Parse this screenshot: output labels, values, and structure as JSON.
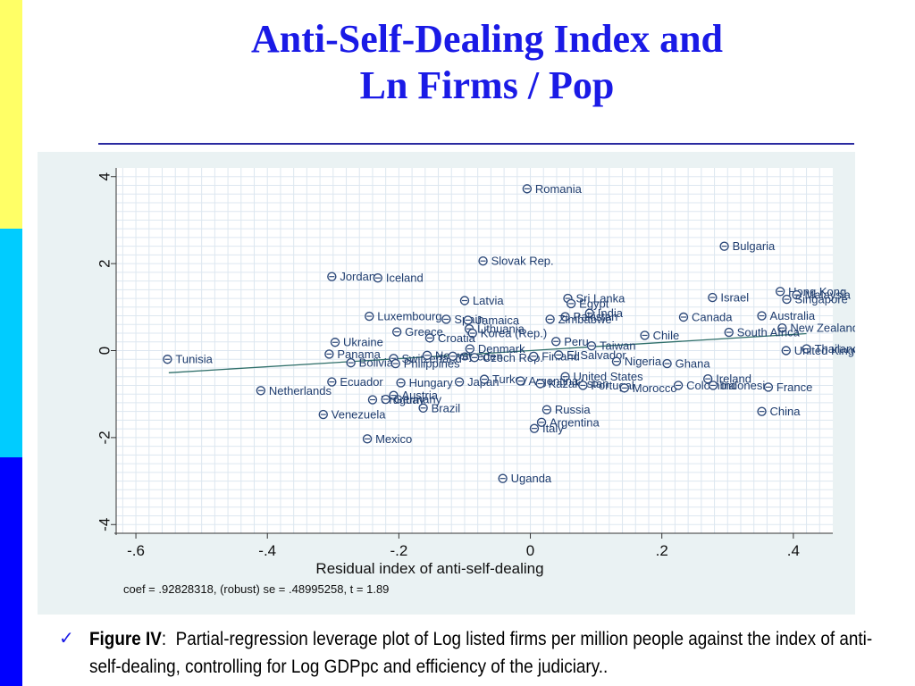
{
  "slide": {
    "title_line1": "Anti-Self-Dealing Index and",
    "title_line2": "Ln Firms / Pop",
    "accent_colors": [
      "#ffff66",
      "#00ccff",
      "#0000ff"
    ],
    "title_color": "#1a1ae6"
  },
  "caption": {
    "bullet_icon": "checkmark-icon",
    "label": "Figure IV",
    "separator": ":",
    "text": "Partial-regression leverage plot of Log listed firms per million people against the index of anti-self-dealing, controlling for Log GDPpc and efficiency of the judiciary.."
  },
  "chart_data": {
    "type": "scatter",
    "xlabel": "Residual index of anti-self-dealing",
    "ylabel": "",
    "footnote": "coef = .92828318, (robust) se = .48995258, t = 1.89",
    "xlim": [
      -0.63,
      0.46
    ],
    "ylim": [
      -4.2,
      4.2
    ],
    "xticks": [
      -0.6,
      -0.4,
      -0.2,
      0,
      0.2,
      0.4
    ],
    "xtick_labels": [
      "-.6",
      "-.4",
      "-.2",
      "0",
      ".2",
      ".4"
    ],
    "yticks": [
      -4,
      -2,
      0,
      2,
      4
    ],
    "ytick_labels": [
      "-4",
      "-2",
      "0",
      "2",
      "4"
    ],
    "grid": true,
    "fit_line": {
      "x": [
        -0.55,
        0.42
      ],
      "y": [
        -0.51,
        0.39
      ]
    },
    "colors": {
      "marker": "#2e4a7a",
      "line": "#2f6f6a",
      "label": "#1e3c6e"
    },
    "points": [
      {
        "label": "Romania",
        "x": -0.005,
        "y": 3.72
      },
      {
        "label": "Bulgaria",
        "x": 0.295,
        "y": 2.4
      },
      {
        "label": "Slovak Rep.",
        "x": -0.072,
        "y": 2.06
      },
      {
        "label": "Jordan",
        "x": -0.302,
        "y": 1.7
      },
      {
        "label": "Iceland",
        "x": -0.232,
        "y": 1.67
      },
      {
        "label": "Latvia",
        "x": -0.1,
        "y": 1.15
      },
      {
        "label": "Sri Lanka",
        "x": 0.057,
        "y": 1.2
      },
      {
        "label": "Egypt",
        "x": 0.062,
        "y": 1.08
      },
      {
        "label": "Israel",
        "x": 0.277,
        "y": 1.22
      },
      {
        "label": "Hong Kong",
        "x": 0.38,
        "y": 1.36
      },
      {
        "label": "Malaysia",
        "x": 0.405,
        "y": 1.28
      },
      {
        "label": "Singapore",
        "x": 0.39,
        "y": 1.18
      },
      {
        "label": "Luxembourg",
        "x": -0.245,
        "y": 0.79
      },
      {
        "label": "Spain",
        "x": -0.128,
        "y": 0.72
      },
      {
        "label": "Jamaica",
        "x": -0.095,
        "y": 0.7
      },
      {
        "label": "India",
        "x": 0.09,
        "y": 0.86
      },
      {
        "label": "Pakistan",
        "x": 0.053,
        "y": 0.78
      },
      {
        "label": "Zimbabwe",
        "x": 0.03,
        "y": 0.72
      },
      {
        "label": "Canada",
        "x": 0.233,
        "y": 0.77
      },
      {
        "label": "Australia",
        "x": 0.352,
        "y": 0.8
      },
      {
        "label": "New Zealand",
        "x": 0.383,
        "y": 0.52
      },
      {
        "label": "South Africa",
        "x": 0.302,
        "y": 0.42
      },
      {
        "label": "Greece",
        "x": -0.203,
        "y": 0.43
      },
      {
        "label": "Lithuania",
        "x": -0.093,
        "y": 0.5
      },
      {
        "label": "Korea (Rep.)",
        "x": -0.088,
        "y": 0.4
      },
      {
        "label": "Croatia",
        "x": -0.153,
        "y": 0.29
      },
      {
        "label": "Chile",
        "x": 0.174,
        "y": 0.35
      },
      {
        "label": "Ukraine",
        "x": -0.297,
        "y": 0.19
      },
      {
        "label": "Peru",
        "x": 0.039,
        "y": 0.21
      },
      {
        "label": "Taiwan",
        "x": 0.093,
        "y": 0.11
      },
      {
        "label": "Denmark",
        "x": -0.092,
        "y": 0.04
      },
      {
        "label": "Thailand",
        "x": 0.42,
        "y": 0.04
      },
      {
        "label": "United Kingdom",
        "x": 0.389,
        "y": 0.0
      },
      {
        "label": "Tunisia",
        "x": -0.552,
        "y": -0.2
      },
      {
        "label": "Panama",
        "x": -0.306,
        "y": -0.08
      },
      {
        "label": "Switzerland",
        "x": -0.208,
        "y": -0.18
      },
      {
        "label": "Norway",
        "x": -0.157,
        "y": -0.11
      },
      {
        "label": "Sweden",
        "x": -0.118,
        "y": -0.13
      },
      {
        "label": "Czech Rep.",
        "x": -0.085,
        "y": -0.16
      },
      {
        "label": "Finland",
        "x": 0.005,
        "y": -0.13
      },
      {
        "label": "El Salvador",
        "x": 0.043,
        "y": -0.1
      },
      {
        "label": "Bolivia",
        "x": -0.273,
        "y": -0.28
      },
      {
        "label": "Philippines",
        "x": -0.205,
        "y": -0.3
      },
      {
        "label": "Nigeria",
        "x": 0.131,
        "y": -0.25
      },
      {
        "label": "Ghana",
        "x": 0.208,
        "y": -0.3
      },
      {
        "label": "United States",
        "x": 0.053,
        "y": -0.6
      },
      {
        "label": "Ireland",
        "x": 0.27,
        "y": -0.65
      },
      {
        "label": "Ecuador",
        "x": -0.302,
        "y": -0.72
      },
      {
        "label": "Hungary",
        "x": -0.197,
        "y": -0.74
      },
      {
        "label": "Japan",
        "x": -0.108,
        "y": -0.72
      },
      {
        "label": "Turkey",
        "x": -0.07,
        "y": -0.66
      },
      {
        "label": "Argentina",
        "x": -0.015,
        "y": -0.7
      },
      {
        "label": "Kazakhstan",
        "x": 0.015,
        "y": -0.76
      },
      {
        "label": "Netherlands",
        "x": -0.41,
        "y": -0.92
      },
      {
        "label": "Portugal",
        "x": 0.08,
        "y": -0.8
      },
      {
        "label": "Morocco",
        "x": 0.143,
        "y": -0.86
      },
      {
        "label": "Colombia",
        "x": 0.225,
        "y": -0.8
      },
      {
        "label": "Indonesia",
        "x": 0.278,
        "y": -0.8
      },
      {
        "label": "France",
        "x": 0.362,
        "y": -0.84
      },
      {
        "label": "Austria",
        "x": -0.208,
        "y": -1.03
      },
      {
        "label": "Uruguay",
        "x": -0.24,
        "y": -1.13
      },
      {
        "label": "Germany",
        "x": -0.22,
        "y": -1.12
      },
      {
        "label": "Brazil",
        "x": -0.163,
        "y": -1.32
      },
      {
        "label": "Russia",
        "x": 0.025,
        "y": -1.36
      },
      {
        "label": "China",
        "x": 0.352,
        "y": -1.4
      },
      {
        "label": "Venezuela",
        "x": -0.315,
        "y": -1.47
      },
      {
        "label": "Argentina",
        "x": 0.017,
        "y": -1.65
      },
      {
        "label": "Italy",
        "x": 0.006,
        "y": -1.79
      },
      {
        "label": "Mexico",
        "x": -0.248,
        "y": -2.03
      },
      {
        "label": "Uganda",
        "x": -0.042,
        "y": -2.94
      }
    ]
  }
}
